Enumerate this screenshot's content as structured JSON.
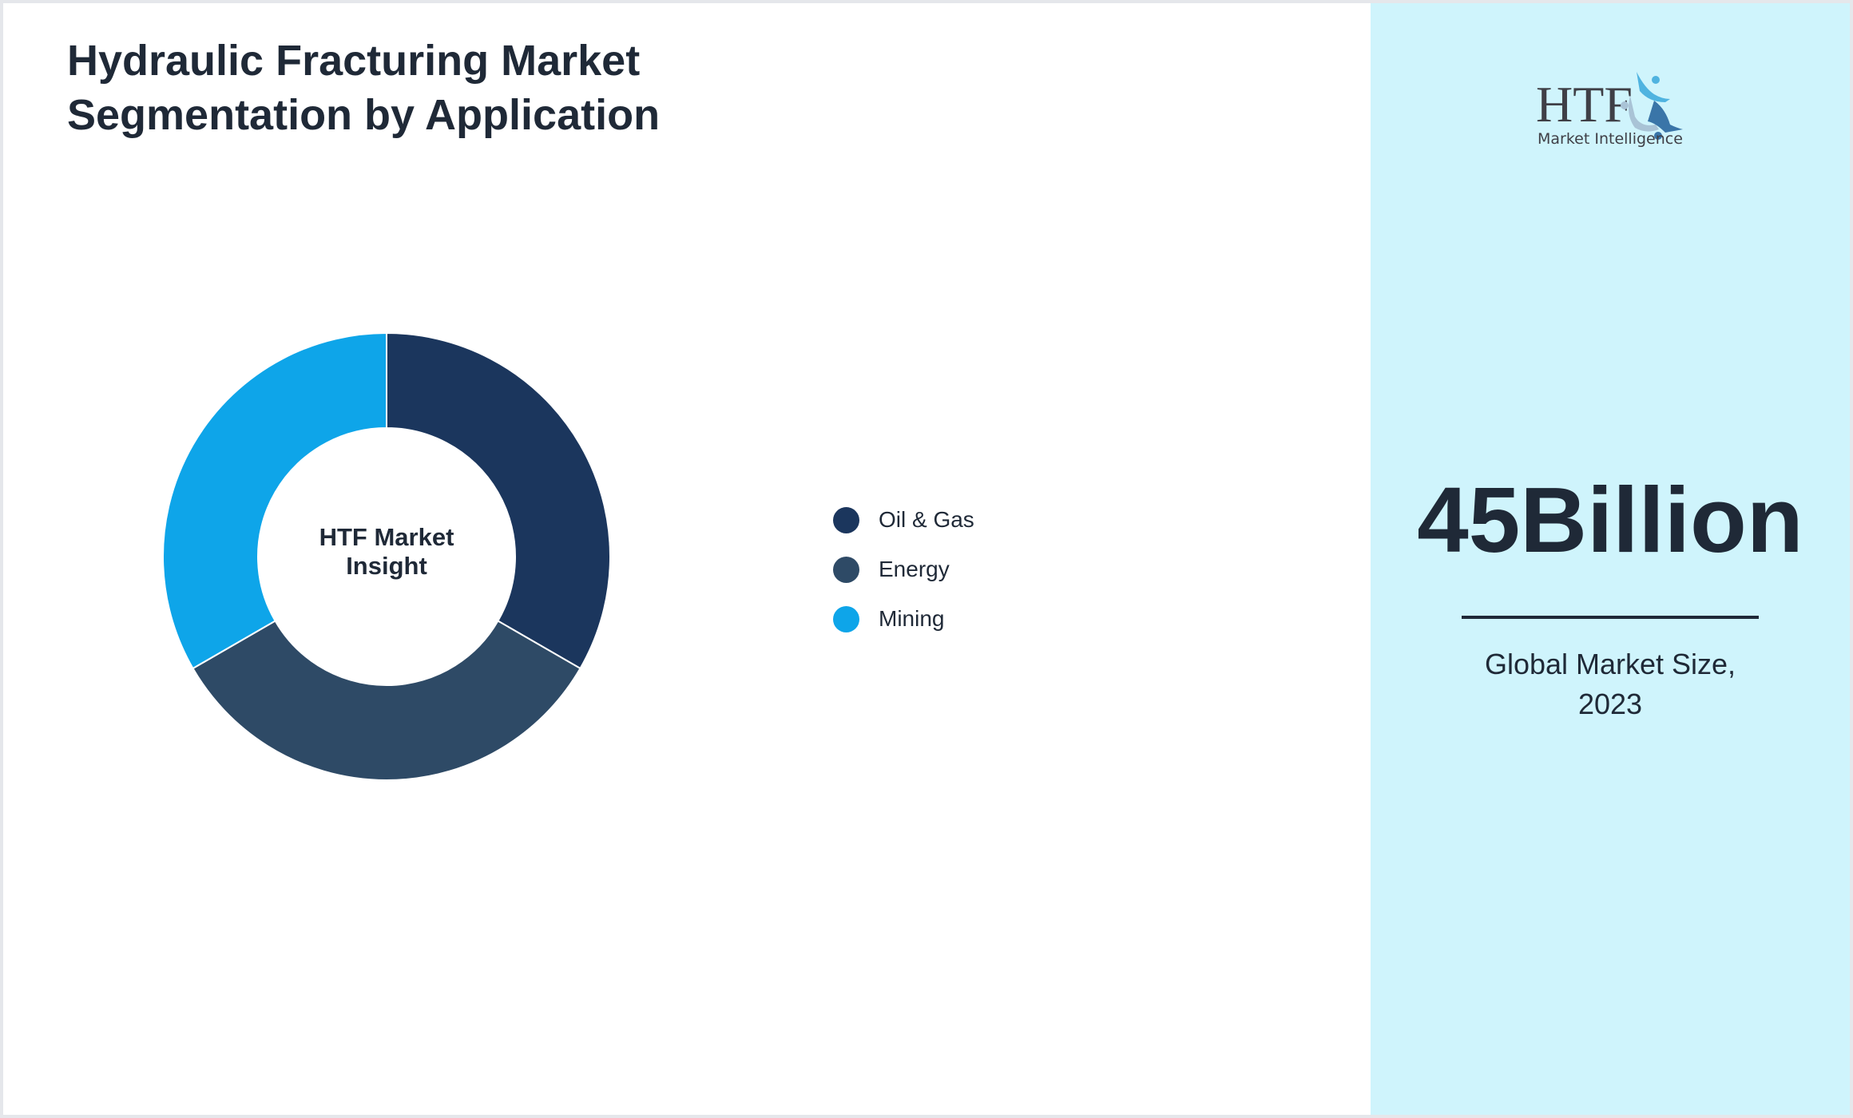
{
  "title": "Hydraulic Fracturing Market Segmentation by Application",
  "title_lines": [
    "Hydraulic Fracturing Market",
    "Segmentation by Application"
  ],
  "center_label_lines": [
    "HTF Market",
    "Insight"
  ],
  "chart_data": {
    "type": "pie",
    "variant": "donut",
    "categories": [
      "Oil & Gas",
      "Energy",
      "Mining"
    ],
    "values": [
      33.3,
      33.3,
      33.3
    ],
    "colors": [
      "#1b365d",
      "#2e4a66",
      "#0ea5e9"
    ],
    "legend_placement": "right"
  },
  "side_panel": {
    "logo_text": "HTF Market Intelligence",
    "value": "45Billion",
    "caption_lines": [
      "Global Market Size,",
      "2023"
    ],
    "background": "#cff4fc"
  }
}
